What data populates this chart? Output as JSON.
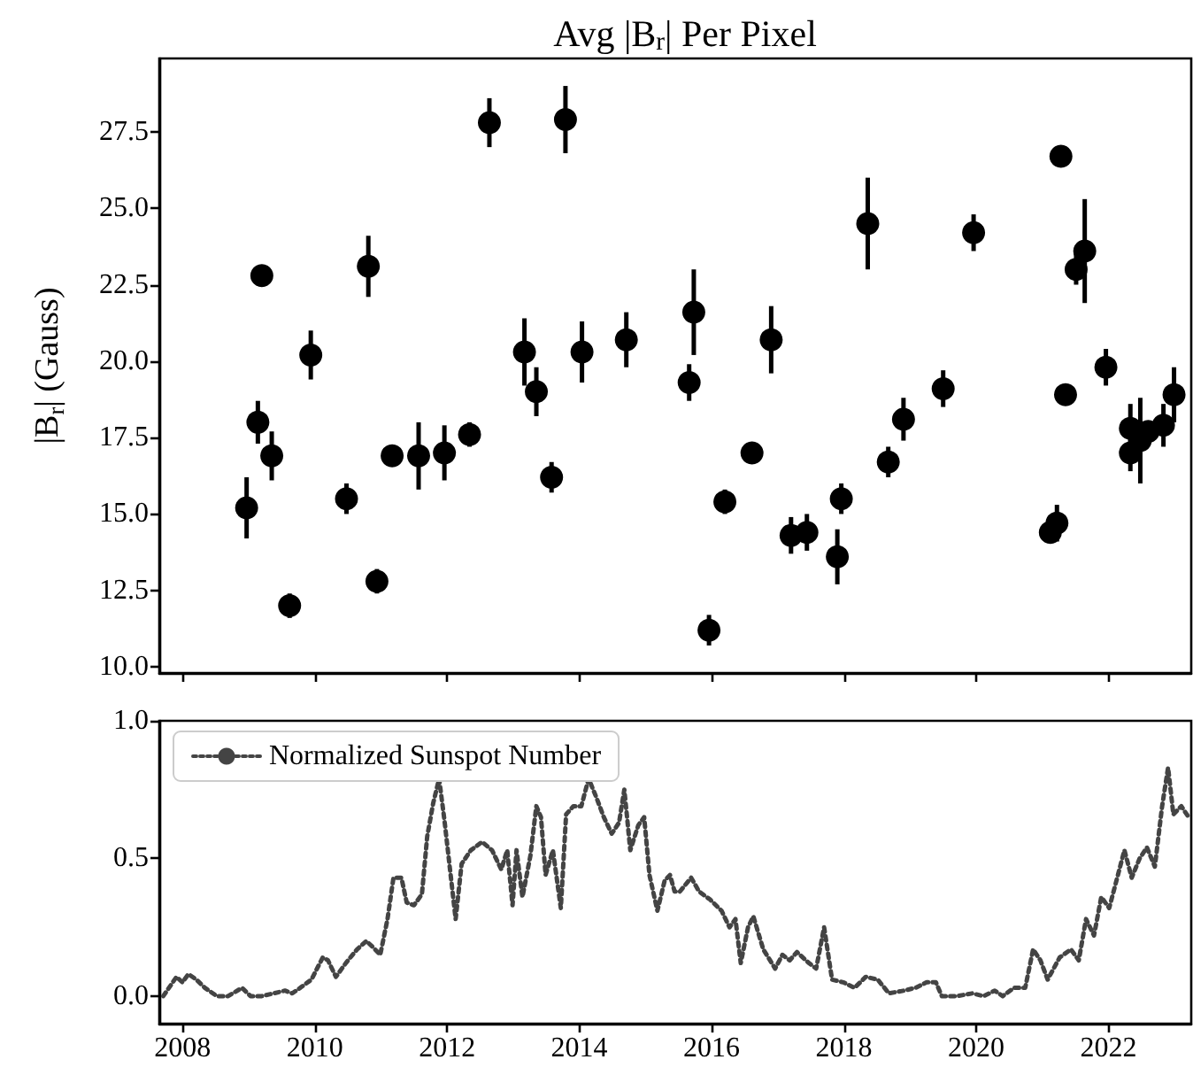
{
  "chart_data": [
    {
      "type": "scatter",
      "title": "Avg |B$_{r}$| Per Pixel",
      "ylabel": "|B$_{r}$| (Gauss)",
      "color": "#000000",
      "marker": "circle",
      "tick_labels": "y",
      "x": [
        2008.97,
        2009.14,
        2009.2,
        2009.35,
        2009.62,
        2009.94,
        2010.48,
        2010.81,
        2010.94,
        2011.17,
        2011.57,
        2011.96,
        2012.34,
        2012.64,
        2013.17,
        2013.35,
        2013.58,
        2013.79,
        2014.04,
        2014.71,
        2015.66,
        2015.73,
        2015.96,
        2016.2,
        2016.61,
        2016.9,
        2017.2,
        2017.44,
        2017.9,
        2017.96,
        2018.36,
        2018.67,
        2018.9,
        2019.5,
        2019.96,
        2021.12,
        2021.22,
        2021.28,
        2021.35,
        2021.51,
        2021.64,
        2021.96,
        2022.33,
        2022.33,
        2022.48,
        2022.6,
        2022.83,
        2022.99
      ],
      "values": [
        15.2,
        18.0,
        22.8,
        16.9,
        12.0,
        20.2,
        15.5,
        23.1,
        12.8,
        16.9,
        16.9,
        17.0,
        17.6,
        27.8,
        20.3,
        19.0,
        16.2,
        27.9,
        20.3,
        20.7,
        19.3,
        21.6,
        11.2,
        15.4,
        17.0,
        20.7,
        14.3,
        14.4,
        13.6,
        15.5,
        24.5,
        16.7,
        18.1,
        19.1,
        24.2,
        14.4,
        14.7,
        26.7,
        18.9,
        23.0,
        23.6,
        19.8,
        17.8,
        17.0,
        17.4,
        17.7,
        17.9,
        18.9
      ],
      "errors": [
        1.0,
        0.7,
        0.2,
        0.8,
        0.4,
        0.8,
        0.5,
        1.0,
        0.4,
        0.2,
        1.1,
        0.9,
        0.4,
        0.8,
        1.1,
        0.8,
        0.5,
        1.1,
        1.0,
        0.9,
        0.6,
        1.4,
        0.5,
        0.4,
        0.2,
        1.1,
        0.6,
        0.6,
        0.9,
        0.5,
        1.5,
        0.5,
        0.7,
        0.6,
        0.6,
        0.3,
        0.6,
        0.3,
        0.3,
        0.5,
        1.7,
        0.6,
        0.8,
        0.6,
        1.4,
        0.3,
        0.7,
        0.9
      ],
      "xlim": [
        2007.65,
        2023.25
      ],
      "xticks": [
        2008,
        2010,
        2012,
        2014,
        2016,
        2018,
        2020,
        2022
      ],
      "ylim": [
        9.8,
        29.9
      ],
      "yticks": [
        {
          "value": 10,
          "label": "10.0"
        },
        {
          "value": 12.5,
          "label": "12.5"
        },
        {
          "value": 15,
          "label": "15.0"
        },
        {
          "value": 17.5,
          "label": "17.5"
        },
        {
          "value": 20,
          "label": "20.0"
        },
        {
          "value": 22.5,
          "label": "22.5"
        },
        {
          "value": 25,
          "label": "25.0"
        },
        {
          "value": 27.5,
          "label": "27.5"
        }
      ]
    },
    {
      "type": "line",
      "line_style": "dotted",
      "marker": "none",
      "legend": "top left",
      "x": [
        2007.71,
        2007.91,
        2008.0,
        2008.09,
        2008.21,
        2008.34,
        2008.52,
        2008.69,
        2008.9,
        2009.03,
        2009.2,
        2009.38,
        2009.55,
        2009.66,
        2009.78,
        2009.95,
        2010.12,
        2010.2,
        2010.32,
        2010.47,
        2010.64,
        2010.78,
        2010.87,
        2010.99,
        2011.1,
        2011.19,
        2011.31,
        2011.39,
        2011.5,
        2011.62,
        2011.7,
        2011.79,
        2011.88,
        2011.96,
        2012.04,
        2012.13,
        2012.22,
        2012.36,
        2012.53,
        2012.68,
        2012.82,
        2012.91,
        2012.99,
        2013.05,
        2013.14,
        2013.26,
        2013.35,
        2013.42,
        2013.49,
        2013.6,
        2013.72,
        2013.8,
        2013.91,
        2014.03,
        2014.14,
        2014.26,
        2014.37,
        2014.49,
        2014.6,
        2014.68,
        2014.77,
        2014.89,
        2014.98,
        2015.06,
        2015.18,
        2015.29,
        2015.37,
        2015.44,
        2015.52,
        2015.69,
        2015.81,
        2015.98,
        2016.15,
        2016.27,
        2016.36,
        2016.44,
        2016.55,
        2016.63,
        2016.78,
        2016.96,
        2017.07,
        2017.18,
        2017.29,
        2017.47,
        2017.58,
        2017.7,
        2017.82,
        2017.99,
        2018.16,
        2018.33,
        2018.51,
        2018.68,
        2018.91,
        2019.08,
        2019.25,
        2019.39,
        2019.48,
        2019.71,
        2019.94,
        2020.11,
        2020.28,
        2020.4,
        2020.57,
        2020.74,
        2020.86,
        2020.97,
        2021.08,
        2021.26,
        2021.43,
        2021.55,
        2021.66,
        2021.78,
        2021.89,
        2022.01,
        2022.12,
        2022.24,
        2022.35,
        2022.47,
        2022.58,
        2022.7,
        2022.81,
        2022.9,
        2022.98,
        2023.1,
        2023.21
      ],
      "series": [
        {
          "name": "Normalized Sunspot Number",
          "color": "#444444",
          "values": [
            0.0,
            0.07,
            0.05,
            0.08,
            0.06,
            0.03,
            0.0,
            0.0,
            0.03,
            0.0,
            0.0,
            0.01,
            0.02,
            0.01,
            0.03,
            0.06,
            0.14,
            0.13,
            0.07,
            0.12,
            0.17,
            0.2,
            0.18,
            0.15,
            0.28,
            0.43,
            0.43,
            0.34,
            0.33,
            0.37,
            0.58,
            0.7,
            0.79,
            0.64,
            0.47,
            0.28,
            0.48,
            0.53,
            0.56,
            0.53,
            0.46,
            0.53,
            0.33,
            0.53,
            0.36,
            0.51,
            0.69,
            0.65,
            0.44,
            0.53,
            0.32,
            0.66,
            0.69,
            0.69,
            0.79,
            0.72,
            0.65,
            0.59,
            0.63,
            0.75,
            0.53,
            0.62,
            0.65,
            0.44,
            0.31,
            0.42,
            0.44,
            0.38,
            0.38,
            0.43,
            0.38,
            0.35,
            0.31,
            0.25,
            0.28,
            0.12,
            0.25,
            0.29,
            0.17,
            0.1,
            0.15,
            0.13,
            0.16,
            0.12,
            0.1,
            0.25,
            0.06,
            0.05,
            0.03,
            0.07,
            0.06,
            0.01,
            0.02,
            0.03,
            0.05,
            0.05,
            0.0,
            0.0,
            0.01,
            0.0,
            0.02,
            0.0,
            0.03,
            0.03,
            0.17,
            0.13,
            0.06,
            0.14,
            0.17,
            0.13,
            0.28,
            0.22,
            0.36,
            0.32,
            0.42,
            0.53,
            0.43,
            0.5,
            0.54,
            0.47,
            0.69,
            0.83,
            0.66,
            0.69,
            0.65
          ]
        }
      ],
      "xlim": [
        2007.65,
        2023.25
      ],
      "xticks": [
        2008,
        2010,
        2012,
        2014,
        2016,
        2018,
        2020,
        2022
      ],
      "ylim": [
        -0.1,
        1.0
      ],
      "yticks": [
        {
          "value": 0,
          "label": "0.0"
        },
        {
          "value": 0.5,
          "label": "0.5"
        },
        {
          "value": 1,
          "label": "1.0"
        }
      ]
    }
  ]
}
